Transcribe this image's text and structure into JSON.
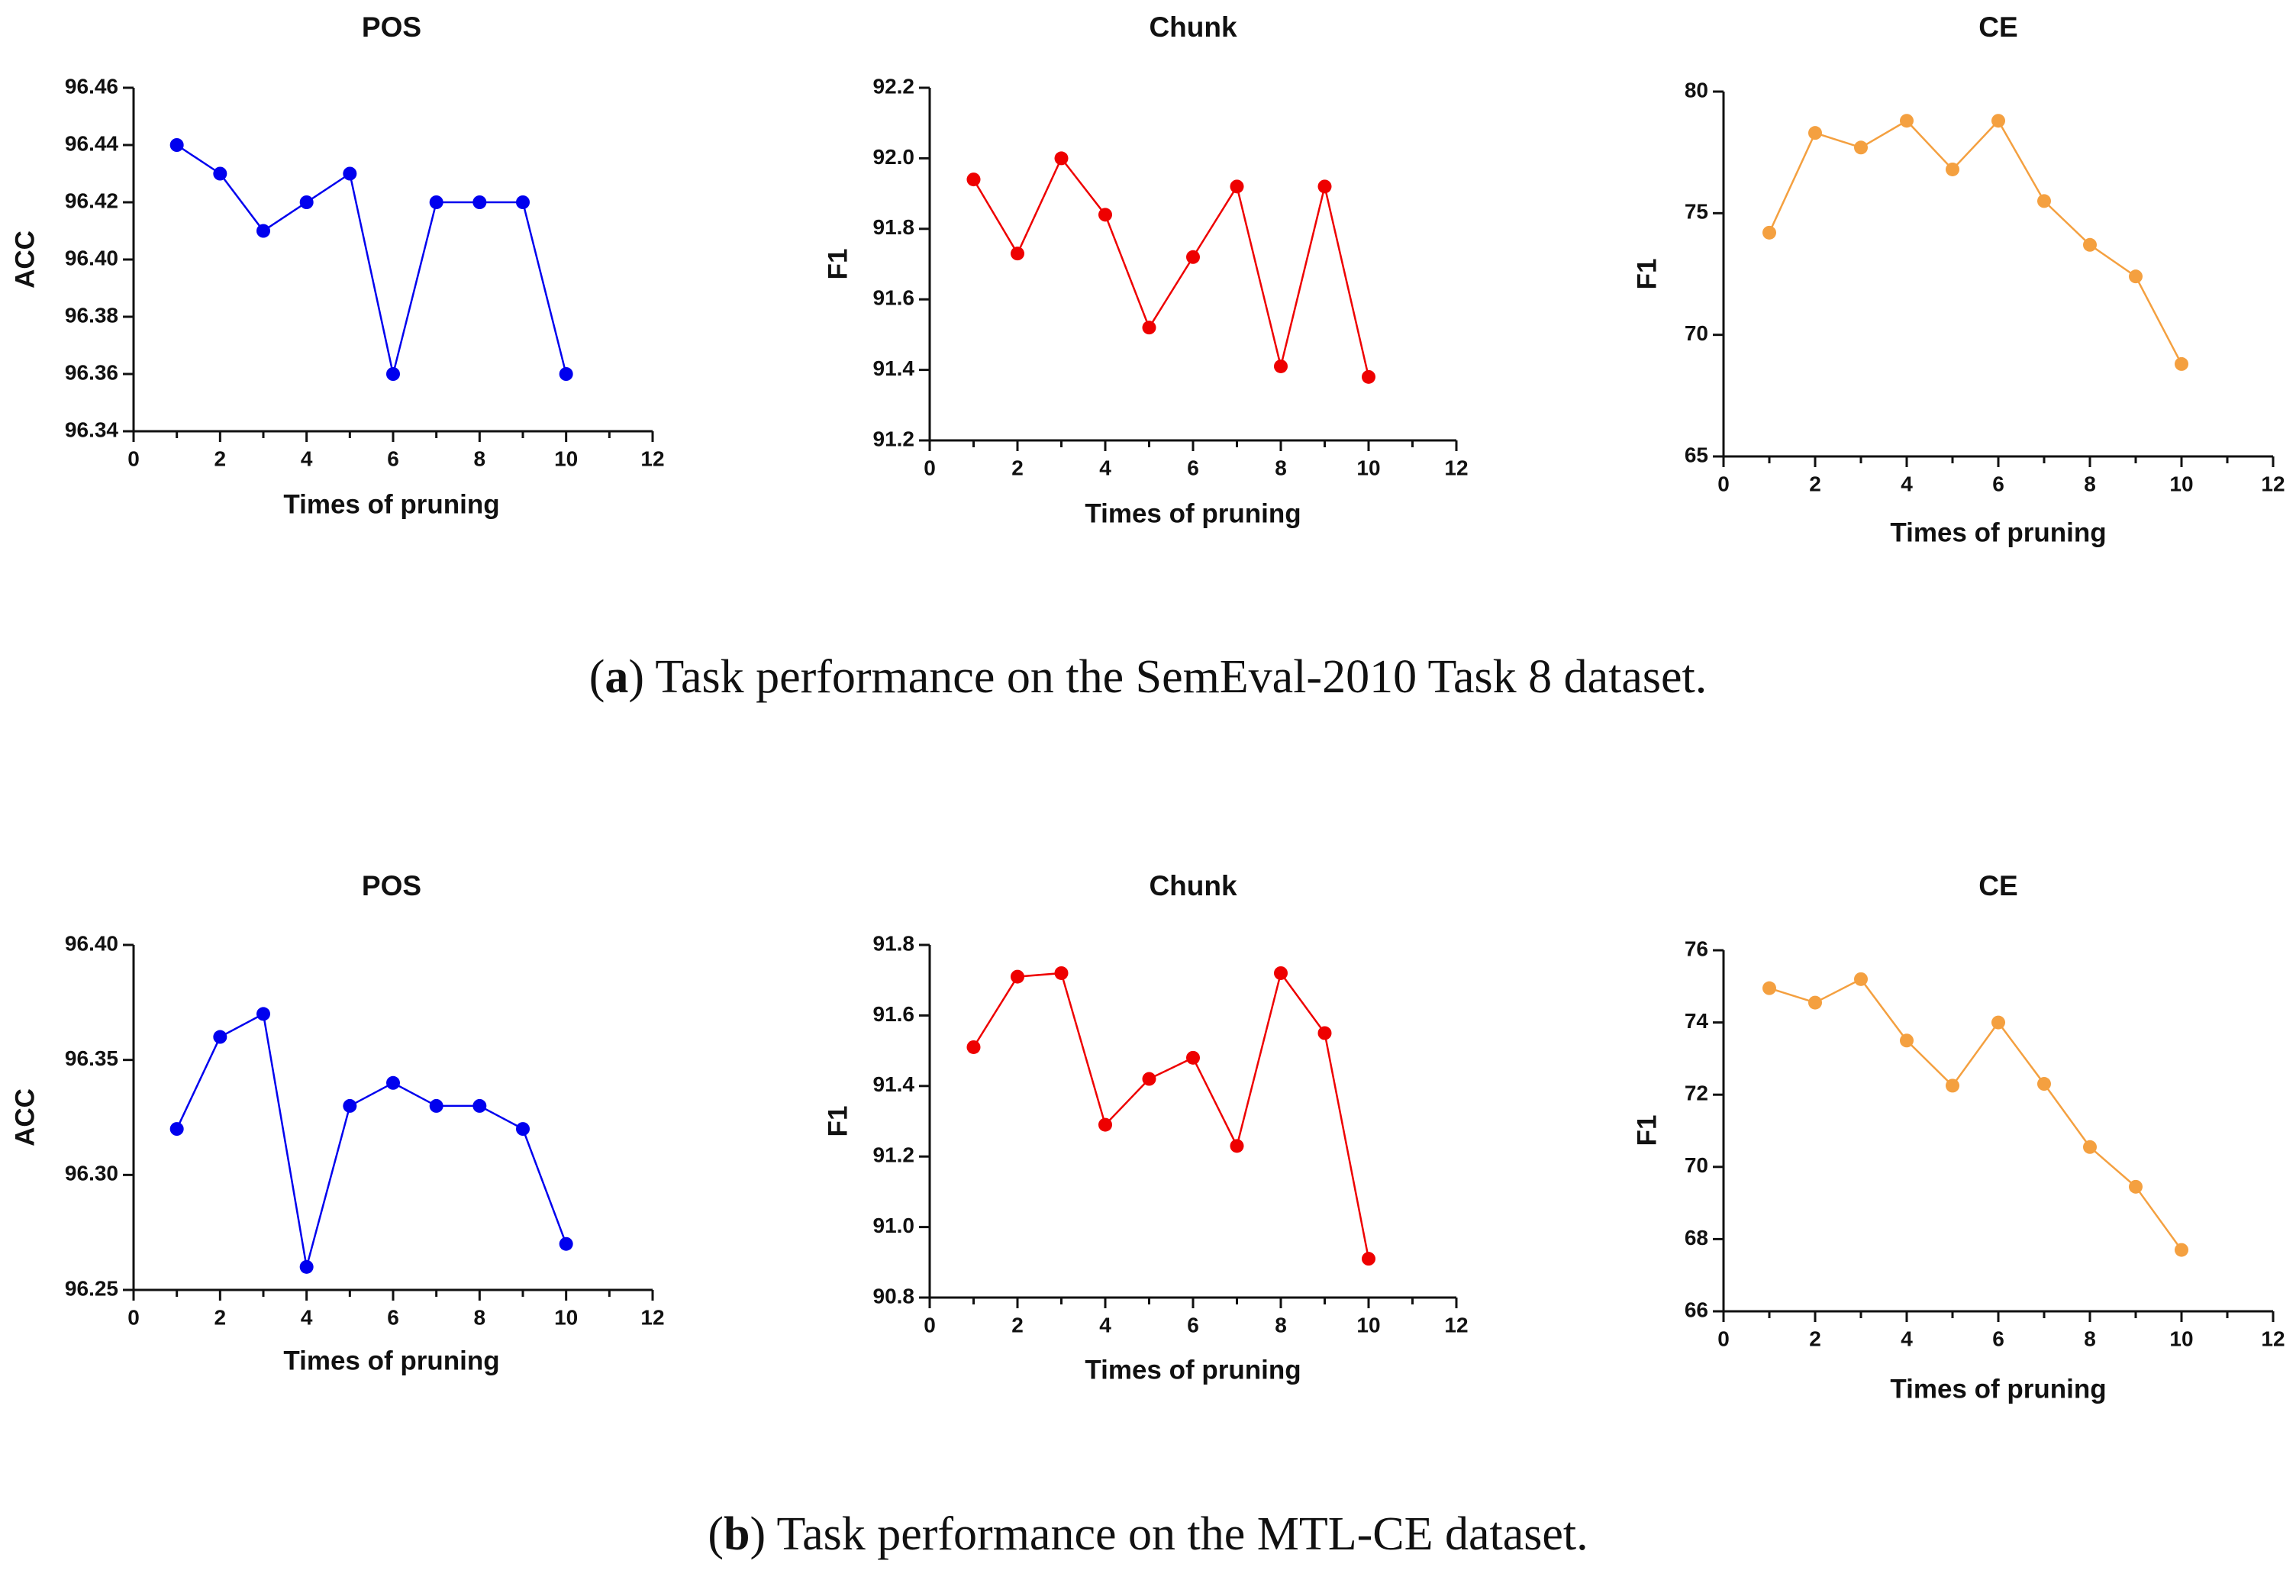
{
  "captions": [
    {
      "letter": "a",
      "text": " Task performance on the SemEval-2010 Task 8 dataset."
    },
    {
      "letter": "b",
      "text": " Task performance on the MTL-CE dataset."
    }
  ],
  "chart_data": [
    {
      "type": "line",
      "title": "POS",
      "xlabel": "Times of pruning",
      "ylabel": "ACC",
      "color": "#0000ee",
      "x": [
        1,
        2,
        3,
        4,
        5,
        6,
        7,
        8,
        9,
        10
      ],
      "values": [
        96.44,
        96.43,
        96.41,
        96.42,
        96.43,
        96.36,
        96.42,
        96.42,
        96.42,
        96.36
      ],
      "xlim": [
        0,
        12
      ],
      "xticks": [
        0,
        2,
        4,
        6,
        8,
        10,
        12
      ],
      "ylim": [
        96.34,
        96.46
      ],
      "yticks": [
        "96.34",
        "96.36",
        "96.38",
        "96.40",
        "96.42",
        "96.44",
        "96.46"
      ],
      "ytick_values": [
        96.34,
        96.36,
        96.38,
        96.4,
        96.42,
        96.44,
        96.46
      ]
    },
    {
      "type": "line",
      "title": "Chunk",
      "xlabel": "Times of pruning",
      "ylabel": "F1",
      "color": "#ee0000",
      "x": [
        1,
        2,
        3,
        4,
        5,
        6,
        7,
        8,
        9,
        10
      ],
      "values": [
        91.94,
        91.73,
        92.0,
        91.84,
        91.52,
        91.72,
        91.92,
        91.41,
        91.92,
        91.38
      ],
      "xlim": [
        0,
        12
      ],
      "xticks": [
        0,
        2,
        4,
        6,
        8,
        10,
        12
      ],
      "ylim": [
        91.2,
        92.2
      ],
      "yticks": [
        "91.2",
        "91.4",
        "91.6",
        "91.8",
        "92.0",
        "92.2"
      ],
      "ytick_values": [
        91.2,
        91.4,
        91.6,
        91.8,
        92.0,
        92.2
      ]
    },
    {
      "type": "line",
      "title": "CE",
      "xlabel": "Times of pruning",
      "ylabel": "F1",
      "color": "#f4a040",
      "x": [
        1,
        2,
        3,
        4,
        5,
        6,
        7,
        8,
        9,
        10
      ],
      "values": [
        74.2,
        78.3,
        77.7,
        78.8,
        76.8,
        78.8,
        75.5,
        73.7,
        72.4,
        68.8
      ],
      "xlim": [
        0,
        12
      ],
      "xticks": [
        0,
        2,
        4,
        6,
        8,
        10,
        12
      ],
      "ylim": [
        65,
        80
      ],
      "yticks": [
        "65",
        "70",
        "75",
        "80"
      ],
      "ytick_values": [
        65,
        70,
        75,
        80
      ]
    },
    {
      "type": "line",
      "title": "POS",
      "xlabel": "Times of pruning",
      "ylabel": "ACC",
      "color": "#0000ee",
      "x": [
        1,
        2,
        3,
        4,
        5,
        6,
        7,
        8,
        9,
        10
      ],
      "values": [
        96.32,
        96.36,
        96.37,
        96.26,
        96.33,
        96.34,
        96.33,
        96.33,
        96.32,
        96.27
      ],
      "xlim": [
        0,
        12
      ],
      "xticks": [
        0,
        2,
        4,
        6,
        8,
        10,
        12
      ],
      "ylim": [
        96.25,
        96.4
      ],
      "yticks": [
        "96.25",
        "96.30",
        "96.35",
        "96.40"
      ],
      "ytick_values": [
        96.25,
        96.3,
        96.35,
        96.4
      ]
    },
    {
      "type": "line",
      "title": "Chunk",
      "xlabel": "Times of pruning",
      "ylabel": "F1",
      "color": "#ee0000",
      "x": [
        1,
        2,
        3,
        4,
        5,
        6,
        7,
        8,
        9,
        10
      ],
      "values": [
        91.51,
        91.71,
        91.72,
        91.29,
        91.42,
        91.48,
        91.23,
        91.72,
        91.55,
        90.91
      ],
      "xlim": [
        0,
        12
      ],
      "xticks": [
        0,
        2,
        4,
        6,
        8,
        10,
        12
      ],
      "ylim": [
        90.8,
        91.8
      ],
      "yticks": [
        "90.8",
        "91.0",
        "91.2",
        "91.4",
        "91.6",
        "91.8"
      ],
      "ytick_values": [
        90.8,
        91.0,
        91.2,
        91.4,
        91.6,
        91.8
      ]
    },
    {
      "type": "line",
      "title": "CE",
      "xlabel": "Times of pruning",
      "ylabel": "F1",
      "color": "#f4a040",
      "x": [
        1,
        2,
        3,
        4,
        5,
        6,
        7,
        8,
        9,
        10
      ],
      "values": [
        74.95,
        74.55,
        75.2,
        73.5,
        72.25,
        74.0,
        72.3,
        70.55,
        69.45,
        67.7
      ],
      "xlim": [
        0,
        12
      ],
      "xticks": [
        0,
        2,
        4,
        6,
        8,
        10,
        12
      ],
      "ylim": [
        66,
        76
      ],
      "yticks": [
        "66",
        "68",
        "70",
        "72",
        "74",
        "76"
      ],
      "ytick_values": [
        66,
        68,
        70,
        72,
        74,
        76
      ]
    }
  ]
}
